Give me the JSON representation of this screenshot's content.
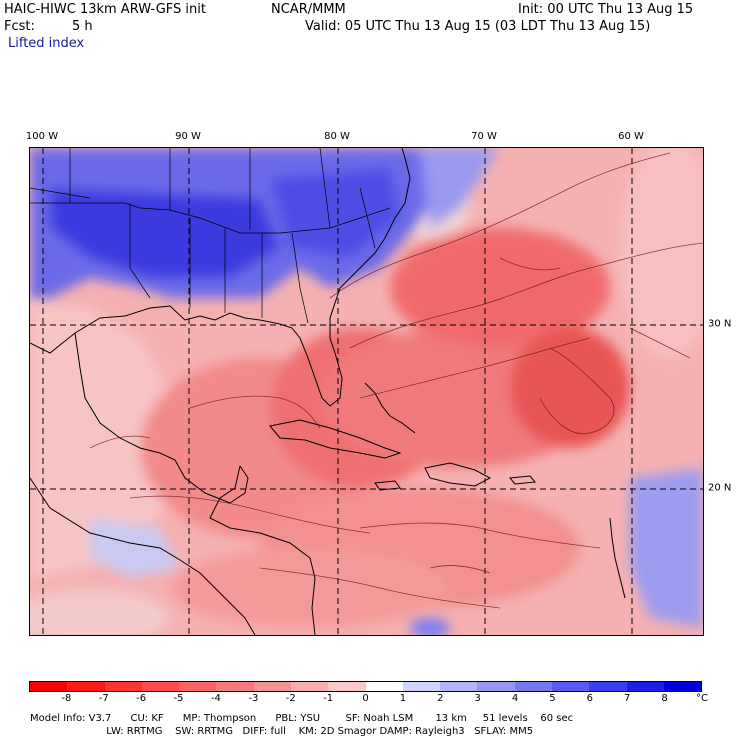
{
  "header": {
    "model": "HAIC-HIWC 13km ARW-GFS init",
    "org": "NCAR/MMM",
    "init": "Init: 00 UTC Thu 13 Aug 15",
    "fcst_label": "Fcst:",
    "fcst_value": "5 h",
    "valid": "Valid: 05 UTC Thu 13 Aug 15 (03 LDT Thu 13 Aug 15)",
    "field": "Lifted index"
  },
  "map": {
    "longitudes": [
      "100 W",
      "90 W",
      "80 W",
      "70 W",
      "60 W"
    ],
    "latitudes": [
      "30 N",
      "20 N"
    ]
  },
  "colorbar": {
    "ticks": [
      "-8",
      "-7",
      "-6",
      "-5",
      "-4",
      "-3",
      "-2",
      "-1",
      "0",
      "1",
      "2",
      "3",
      "4",
      "5",
      "6",
      "7",
      "8"
    ],
    "unit": "°C",
    "colors": [
      "#ff0000",
      "#ff1a1a",
      "#ff3333",
      "#ff4d4d",
      "#f96464",
      "#f47b7b",
      "#f49393",
      "#f7adad",
      "#fac8c8",
      "#ffffff",
      "#d2d2ff",
      "#b4b4fa",
      "#9696f5",
      "#7878f0",
      "#5a5af0",
      "#3c3cf0",
      "#1e1ee6",
      "#0000dc"
    ]
  },
  "model_info": {
    "line1": "Model Info: V3.7      CU: KF      MP: Thompson      PBL: YSU        SF: Noah LSM       13 km     51 levels    60 sec",
    "line2": "                        LW: RRTMG    SW: RRTMG   DIFF: full    KM: 2D Smagor DAMP: Rayleigh3   SFLAY: MM5"
  }
}
